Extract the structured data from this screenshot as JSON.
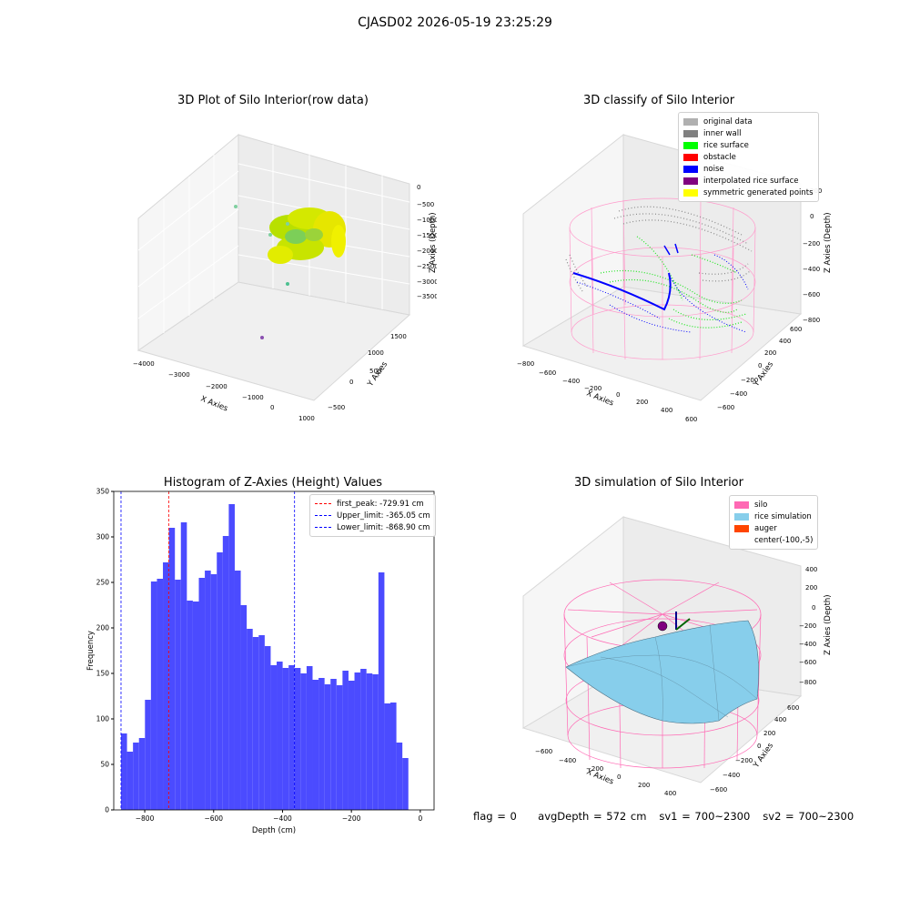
{
  "suptitle": "CJASD02 2026-05-19 23:25:29",
  "panels": {
    "raw": {
      "title": "3D Plot of Silo Interior(row data)",
      "xlabel": "X Axies",
      "ylabel": "Y Axies",
      "zlabel": "Z Axies (Depth)",
      "xticks": [
        "−4000",
        "−3000",
        "−2000",
        "−1000",
        "0",
        "1000"
      ],
      "yticks": [
        "−500",
        "0",
        "500",
        "1000",
        "1500"
      ],
      "zticks": [
        "0",
        "−500",
        "−1000",
        "−1500",
        "−2000",
        "−2500",
        "−3000",
        "−3500"
      ]
    },
    "classify": {
      "title": "3D classify of Silo Interior",
      "xlabel": "X Axies",
      "ylabel": "Y Axies",
      "zlabel": "Z Axies (Depth)",
      "xticks": [
        "−800",
        "−600",
        "−400",
        "−200",
        "0",
        "200",
        "400",
        "600"
      ],
      "yticks": [
        "−600",
        "−400",
        "−200",
        "0",
        "200",
        "400",
        "600"
      ],
      "zticks": [
        "200",
        "0",
        "−200",
        "−400",
        "−600",
        "−800"
      ],
      "legend": [
        {
          "label": "original data",
          "color": "#b0b0b0"
        },
        {
          "label": "inner wall",
          "color": "#808080"
        },
        {
          "label": "rice surface",
          "color": "#00ff00"
        },
        {
          "label": "obstacle",
          "color": "#ff0000"
        },
        {
          "label": "noise",
          "color": "#0000ff"
        },
        {
          "label": "interpolated rice surface",
          "color": "#800080"
        },
        {
          "label": "symmetric generated points",
          "color": "#ffff00"
        }
      ]
    },
    "simulation": {
      "title": "3D simulation of Silo Interior",
      "xlabel": "X Axies",
      "ylabel": "Y Axies",
      "zlabel": "Z Axies (Depth)",
      "xticks": [
        "−600",
        "−400",
        "−200",
        "0",
        "200",
        "400"
      ],
      "yticks": [
        "−600",
        "−400",
        "−200",
        "0",
        "200",
        "400",
        "600"
      ],
      "zticks": [
        "400",
        "200",
        "0",
        "−200",
        "−400",
        "−600",
        "−800"
      ],
      "legend": [
        {
          "label": "silo",
          "color": "#ff69b4"
        },
        {
          "label": "rice simulation",
          "color": "#87ceeb"
        },
        {
          "label": "auger",
          "color": "#ff4500"
        },
        {
          "label": "center(-100,-5)",
          "color": ""
        }
      ]
    }
  },
  "chart_data": {
    "type": "bar",
    "title": "Histogram of Z-Axies (Height) Values",
    "xlabel": "Depth (cm)",
    "ylabel": "Frequency",
    "xlim": [
      -890,
      40
    ],
    "ylim": [
      0,
      350
    ],
    "xticks": [
      -800,
      -600,
      -400,
      -200,
      0
    ],
    "yticks": [
      0,
      50,
      100,
      150,
      200,
      250,
      300,
      350
    ],
    "bar_color": "#4b4bff",
    "bin_start": -868.9,
    "bin_width": 17.38,
    "values": [
      84,
      64,
      74,
      79,
      121,
      251,
      254,
      272,
      310,
      253,
      316,
      230,
      229,
      255,
      263,
      259,
      283,
      301,
      336,
      263,
      225,
      199,
      190,
      192,
      180,
      159,
      163,
      156,
      159,
      156,
      150,
      158,
      143,
      145,
      138,
      144,
      137,
      153,
      142,
      151,
      155,
      150,
      149,
      261,
      117,
      118,
      74,
      57
    ],
    "vlines": [
      {
        "label": "first_peak: -729.91 cm",
        "x": -729.91,
        "color": "#ff0000"
      },
      {
        "label": "Upper_limit: -365.05 cm",
        "x": -365.05,
        "color": "#0000ff"
      },
      {
        "label": "Lower_limit: -868.90 cm",
        "x": -868.9,
        "color": "#0000ff"
      }
    ],
    "legend_position": "top-right"
  },
  "status": {
    "flag": "flag = 0",
    "avg_depth": "avgDepth = 572 cm",
    "sv1": "sv1 = 700~2300",
    "sv2": "sv2 = 700~2300"
  }
}
